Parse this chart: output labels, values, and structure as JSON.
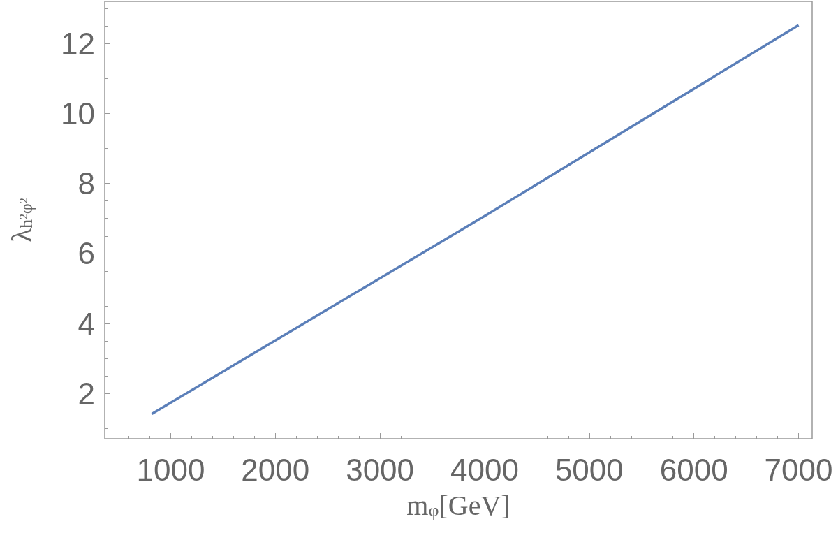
{
  "chart_data": {
    "type": "line",
    "xlabel": "m$_{φ}$[GeV]",
    "ylabel": "λ$_{h²φ²}$",
    "x": [
      820,
      4000,
      7000
    ],
    "series": [
      {
        "color": "#5b7fb9",
        "values": [
          1.42,
          7.07,
          12.52
        ]
      }
    ],
    "xlim": [
      370,
      7130
    ],
    "xticks": [
      1000,
      2000,
      3000,
      4000,
      5000,
      6000,
      7000
    ],
    "ylim": [
      0.71,
      13.2
    ],
    "yticks": [
      2,
      4,
      6,
      8,
      10,
      12
    ],
    "grid": false,
    "marker": "none",
    "line_style": "solid"
  }
}
